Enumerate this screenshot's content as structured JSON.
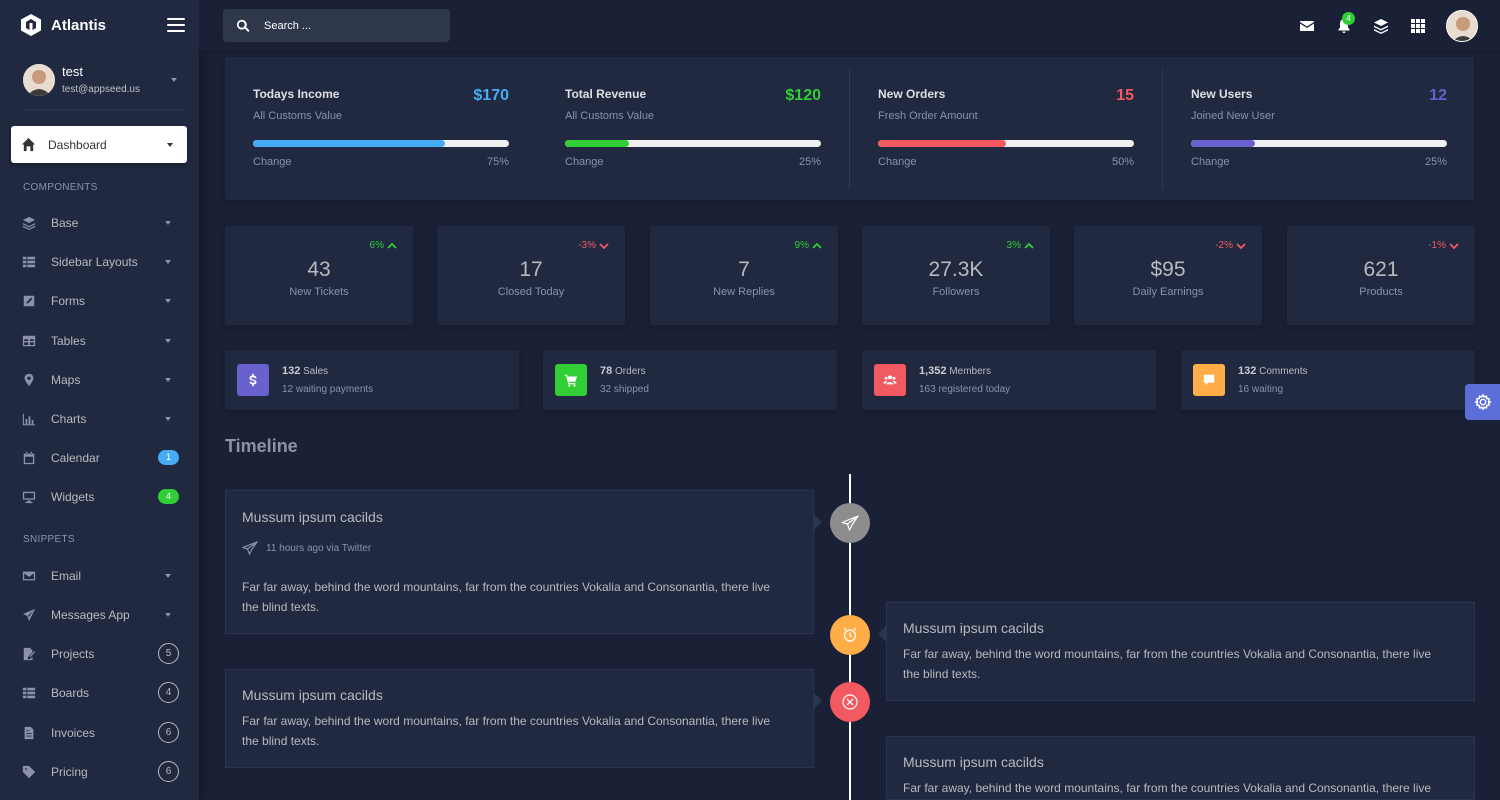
{
  "app": {
    "name": "Atlantis"
  },
  "user": {
    "name": "test",
    "email": "test@appseed.us"
  },
  "search": {
    "placeholder": "Search ..."
  },
  "header": {
    "notification_count": "4"
  },
  "sidebar": {
    "active": {
      "label": "Dashboard"
    },
    "sections": {
      "components": "COMPONENTS",
      "snippets": "SNIPPETS"
    },
    "items": [
      {
        "label": "Base",
        "icon": "layers-icon",
        "type": "caret"
      },
      {
        "label": "Sidebar Layouts",
        "icon": "th-icon",
        "type": "caret"
      },
      {
        "label": "Forms",
        "icon": "pen-square-icon",
        "type": "caret"
      },
      {
        "label": "Tables",
        "icon": "table-icon",
        "type": "caret"
      },
      {
        "label": "Maps",
        "icon": "map-marker-icon",
        "type": "caret"
      },
      {
        "label": "Charts",
        "icon": "bar-chart-icon",
        "type": "caret"
      },
      {
        "label": "Calendar",
        "icon": "calendar-icon",
        "badge": "1"
      },
      {
        "label": "Widgets",
        "icon": "desktop-icon",
        "badge": "4"
      },
      {
        "label": "Email",
        "icon": "envelope-icon",
        "type": "caret"
      },
      {
        "label": "Messages App",
        "icon": "paper-plane-icon",
        "type": "caret"
      },
      {
        "label": "Projects",
        "icon": "file-signature-icon",
        "badge": "5"
      },
      {
        "label": "Boards",
        "icon": "th-list-icon",
        "badge": "4"
      },
      {
        "label": "Invoices",
        "icon": "file-invoice-icon",
        "badge": "6"
      },
      {
        "label": "Pricing",
        "icon": "tag-icon",
        "badge": "6"
      }
    ]
  },
  "stats": [
    {
      "title": "Todays Income",
      "subtitle": "All Customs Value",
      "value": "$170",
      "change_label": "Change",
      "percent": "75%",
      "progress": 0.75,
      "color": "#48abf7"
    },
    {
      "title": "Total Revenue",
      "subtitle": "All Customs Value",
      "value": "$120",
      "change_label": "Change",
      "percent": "25%",
      "progress": 0.25,
      "color": "#31ce36"
    },
    {
      "title": "New Orders",
      "subtitle": "Fresh Order Amount",
      "value": "15",
      "change_label": "Change",
      "percent": "50%",
      "progress": 0.5,
      "color": "#f25961"
    },
    {
      "title": "New Users",
      "subtitle": "Joined New User",
      "value": "12",
      "change_label": "Change",
      "percent": "25%",
      "progress": 0.25,
      "color": "#6861ce"
    }
  ],
  "mini_stats": [
    {
      "value": "43",
      "label": "New Tickets",
      "change": "6%",
      "direction": "up"
    },
    {
      "value": "17",
      "label": "Closed Today",
      "change": "-3%",
      "direction": "down"
    },
    {
      "value": "7",
      "label": "New Replies",
      "change": "9%",
      "direction": "up"
    },
    {
      "value": "27.3K",
      "label": "Followers",
      "change": "3%",
      "direction": "up"
    },
    {
      "value": "$95",
      "label": "Daily Earnings",
      "change": "-2%",
      "direction": "down"
    },
    {
      "value": "621",
      "label": "Products",
      "change": "-1%",
      "direction": "down"
    }
  ],
  "icon_stats": [
    {
      "number": "132",
      "label": "Sales",
      "sub": "12 waiting payments",
      "color": "#6861ce",
      "icon": "dollar-icon"
    },
    {
      "number": "78",
      "label": "Orders",
      "sub": "32 shipped",
      "color": "#31ce36",
      "icon": "shopping-cart-icon"
    },
    {
      "number": "1,352",
      "label": "Members",
      "sub": "163 registered today",
      "color": "#f25961",
      "icon": "users-icon"
    },
    {
      "number": "132",
      "label": "Comments",
      "sub": "16 waiting",
      "color": "#ffad46",
      "icon": "comment-icon"
    }
  ],
  "timeline": {
    "title": "Timeline",
    "entries": [
      {
        "heading": "Mussum ipsum cacilds",
        "meta": "11 hours ago via Twitter",
        "body": "Far far away, behind the word mountains, far from the countries Vokalia and Consonantia, there live the blind texts."
      },
      {
        "heading": "Mussum ipsum cacilds",
        "body": "Far far away, behind the word mountains, far from the countries Vokalia and Consonantia, there live the blind texts."
      },
      {
        "heading": "Mussum ipsum cacilds",
        "body": "Far far away, behind the word mountains, far from the countries Vokalia and Consonantia, there live the blind texts."
      },
      {
        "heading": "Mussum ipsum cacilds",
        "body": "Far far away, behind the word mountains, far from the countries Vokalia and Consonantia, there live the blind texts."
      }
    ]
  },
  "colors": {
    "accent": "#5c6fd8",
    "up": "#31ce36",
    "down": "#f25961"
  }
}
